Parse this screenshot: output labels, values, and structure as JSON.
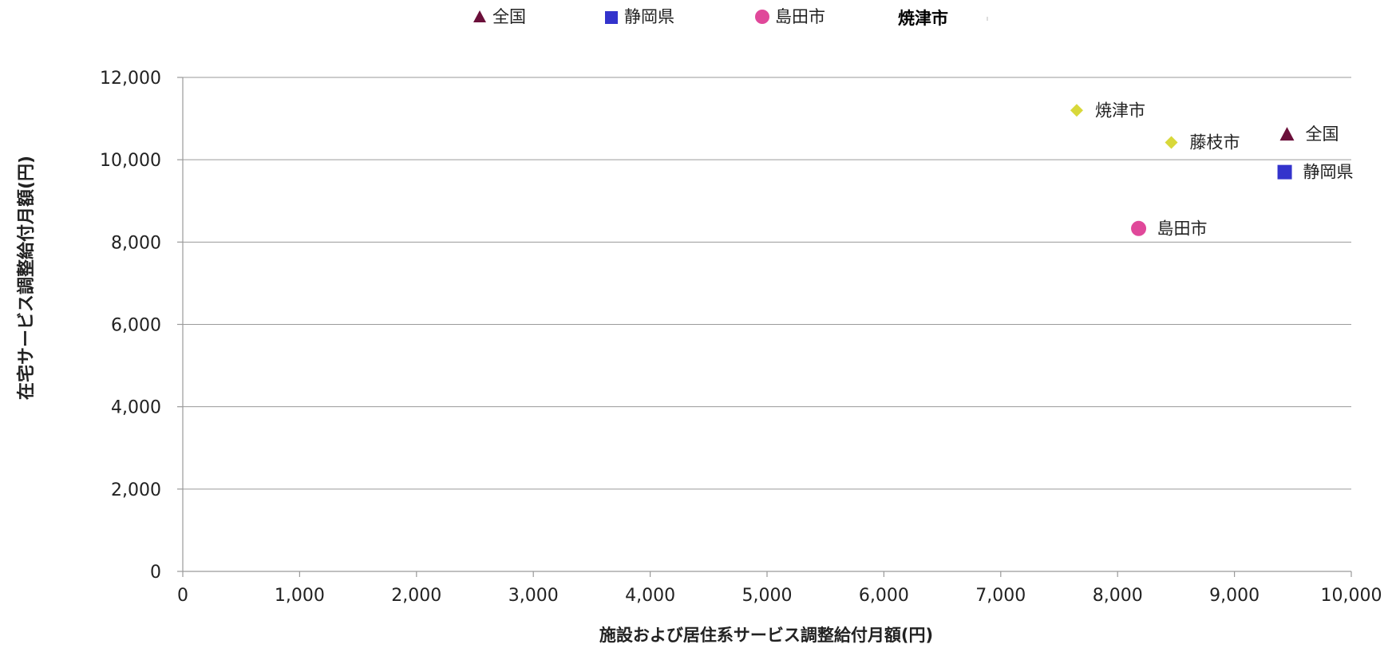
{
  "chart_data": {
    "type": "scatter",
    "xlabel": "施設および居住系サービス調整給付月額(円)",
    "ylabel": "在宅サービス調整給付月額(円)",
    "xlim": [
      0,
      10000
    ],
    "ylim": [
      0,
      12000
    ],
    "x_ticks": [
      0,
      1000,
      2000,
      3000,
      4000,
      5000,
      6000,
      7000,
      8000,
      9000,
      10000
    ],
    "y_ticks": [
      0,
      2000,
      4000,
      6000,
      8000,
      10000,
      12000
    ],
    "x_tick_labels": [
      "0",
      "1,000",
      "2,000",
      "3,000",
      "4,000",
      "5,000",
      "6,000",
      "7,000",
      "8,000",
      "9,000",
      "10,000"
    ],
    "y_tick_labels": [
      "0",
      "2,000",
      "4,000",
      "6,000",
      "8,000",
      "10,000",
      "12,000"
    ],
    "grid": {
      "horizontal": true,
      "vertical": false
    },
    "legend": {
      "position": "top",
      "entries": [
        {
          "name": "全国",
          "marker": "triangle",
          "color": "#6B0F3A"
        },
        {
          "name": "静岡県",
          "marker": "square",
          "color": "#3333CC"
        },
        {
          "name": "島田市",
          "marker": "circle",
          "color": "#E0489A"
        },
        {
          "name": "焼津市",
          "marker": "none",
          "color": "#000000"
        }
      ]
    },
    "points": [
      {
        "label": "焼津市",
        "x": 7650,
        "y": 11200,
        "marker": "diamond",
        "color": "#D8D83A"
      },
      {
        "label": "藤枝市",
        "x": 8460,
        "y": 10420,
        "marker": "diamond",
        "color": "#D8D83A"
      },
      {
        "label": "全国",
        "x": 9450,
        "y": 10620,
        "marker": "triangle",
        "color": "#6B0F3A"
      },
      {
        "label": "静岡県",
        "x": 9430,
        "y": 9700,
        "marker": "square",
        "color": "#3333CC"
      },
      {
        "label": "島田市",
        "x": 8180,
        "y": 8330,
        "marker": "circle",
        "color": "#E0489A"
      }
    ]
  }
}
